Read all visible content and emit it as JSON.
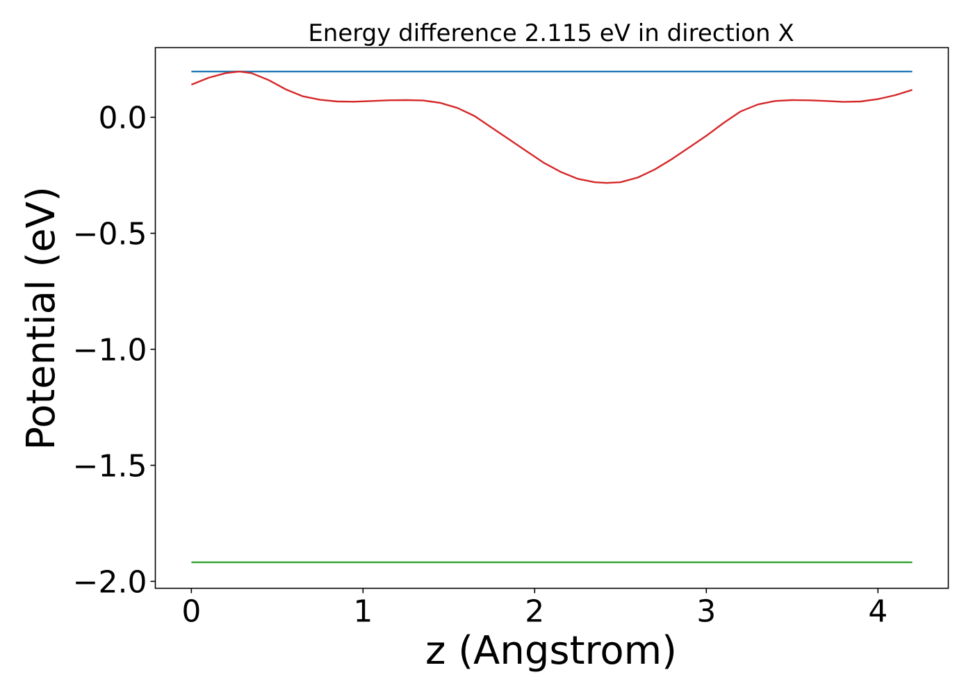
{
  "chart_data": {
    "type": "line",
    "title": "Energy difference 2.115 eV in direction X",
    "xlabel": "z (Angstrom)",
    "ylabel": "Potential (eV)",
    "xlim": [
      -0.21,
      4.41
    ],
    "ylim": [
      -2.03,
      0.3
    ],
    "xticks": [
      0,
      1,
      2,
      3,
      4
    ],
    "xtick_labels": [
      "0",
      "1",
      "2",
      "3",
      "4"
    ],
    "yticks": [
      0.0,
      -0.5,
      -1.0,
      -1.5,
      -2.0
    ],
    "ytick_labels": [
      "0.0",
      "−0.5",
      "−1.0",
      "−1.5",
      "−2.0"
    ],
    "grid": false,
    "series": [
      {
        "color": "#1f77b4",
        "x": [
          0.0,
          4.2
        ],
        "y": [
          0.197,
          0.197
        ]
      },
      {
        "color": "#2ca02c",
        "x": [
          0.0,
          4.2
        ],
        "y": [
          -1.918,
          -1.918
        ]
      },
      {
        "color": "#d62728",
        "x": [
          0.0,
          0.1,
          0.2,
          0.28,
          0.35,
          0.45,
          0.55,
          0.65,
          0.75,
          0.85,
          0.95,
          1.05,
          1.15,
          1.25,
          1.35,
          1.45,
          1.55,
          1.65,
          1.75,
          1.85,
          1.95,
          2.05,
          2.15,
          2.25,
          2.35,
          2.42,
          2.5,
          2.6,
          2.7,
          2.8,
          2.9,
          3.0,
          3.1,
          3.2,
          3.3,
          3.4,
          3.5,
          3.6,
          3.7,
          3.8,
          3.9,
          4.0,
          4.1,
          4.2
        ],
        "y": [
          0.14,
          0.17,
          0.19,
          0.197,
          0.19,
          0.16,
          0.12,
          0.09,
          0.075,
          0.068,
          0.067,
          0.07,
          0.073,
          0.074,
          0.072,
          0.062,
          0.04,
          0.005,
          -0.045,
          -0.095,
          -0.145,
          -0.195,
          -0.235,
          -0.265,
          -0.28,
          -0.283,
          -0.28,
          -0.26,
          -0.225,
          -0.18,
          -0.13,
          -0.08,
          -0.025,
          0.025,
          0.055,
          0.07,
          0.074,
          0.073,
          0.07,
          0.066,
          0.068,
          0.078,
          0.095,
          0.118
        ]
      }
    ]
  }
}
